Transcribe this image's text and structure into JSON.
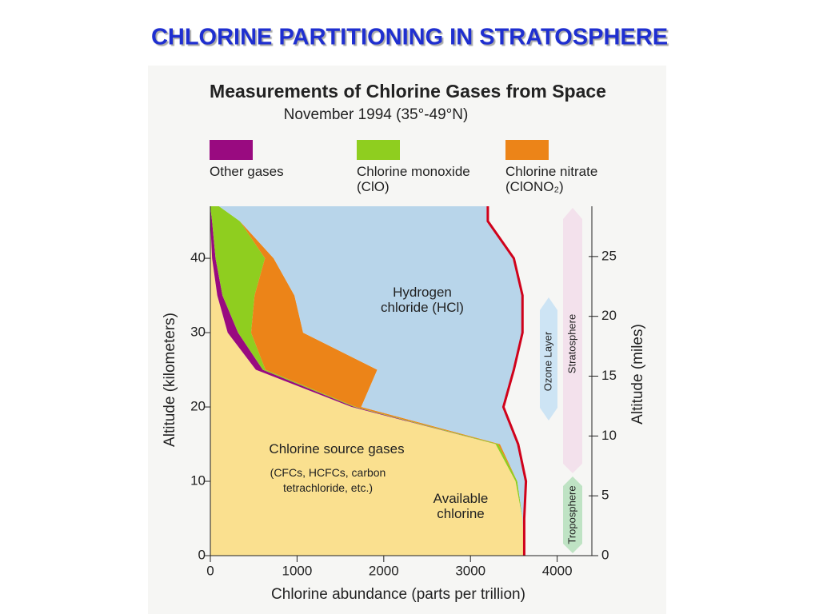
{
  "slide_title": "CHLORINE PARTITIONING IN STRATOSPHERE",
  "chart_data": {
    "type": "stacked_area_horizontal",
    "title": "Measurements of Chlorine Gases from Space",
    "subtitle": "November 1994 (35°-49°N)",
    "x_label": "Chlorine abundance (parts per trillion)",
    "y_label": "Altitude (kilometers)",
    "y2_label": "Altitude (miles)",
    "y": [
      0,
      5,
      10,
      15,
      20,
      25,
      30,
      35,
      40,
      45,
      47
    ],
    "series": [
      {
        "name": "Chlorine source gases",
        "color": "#fae08f",
        "values": [
          3620,
          3600,
          3520,
          3290,
          1630,
          525,
          200,
          80,
          20,
          0,
          0
        ],
        "legend": false
      },
      {
        "name": "Other gases",
        "color": "#990a80",
        "values": [
          0,
          0,
          0,
          0,
          30,
          80,
          120,
          60,
          40,
          20,
          0
        ],
        "legend": true
      },
      {
        "name": "Chlorine monoxide (ClO)",
        "color": "#8fce1f",
        "values": [
          0,
          0,
          20,
          30,
          20,
          30,
          150,
          370,
          570,
          320,
          100
        ],
        "legend": true
      },
      {
        "name": "Chlorine nitrate (ClONO₂)",
        "color": "#ec8418",
        "values": [
          0,
          0,
          0,
          20,
          60,
          1290,
          600,
          460,
          100,
          0,
          0
        ],
        "legend": true
      },
      {
        "name": "Hydrogen chloride (HCl)",
        "color": "#b8d5ea",
        "values": [
          0,
          20,
          100,
          210,
          1640,
          1575,
          2530,
          2630,
          2770,
          2860,
          3100
        ],
        "legend": false
      }
    ],
    "xlim": [
      0,
      4400
    ],
    "xticks": [
      0,
      1000,
      2000,
      3000,
      4000
    ],
    "ylim": [
      0,
      47
    ],
    "yticks": [
      0,
      10,
      20,
      30,
      40
    ],
    "y2lim": [
      0,
      29.2
    ],
    "y2ticks": [
      0,
      5,
      10,
      15,
      20,
      25
    ],
    "total_line_color": "#d0021b",
    "annotations": {
      "source_detail": "(CFCs, HCFCs, carbon tetrachloride, etc.)",
      "available": "Available chlorine",
      "ozone": "Ozone Layer",
      "stratosphere": "Stratosphere",
      "troposphere": "Troposphere"
    }
  }
}
